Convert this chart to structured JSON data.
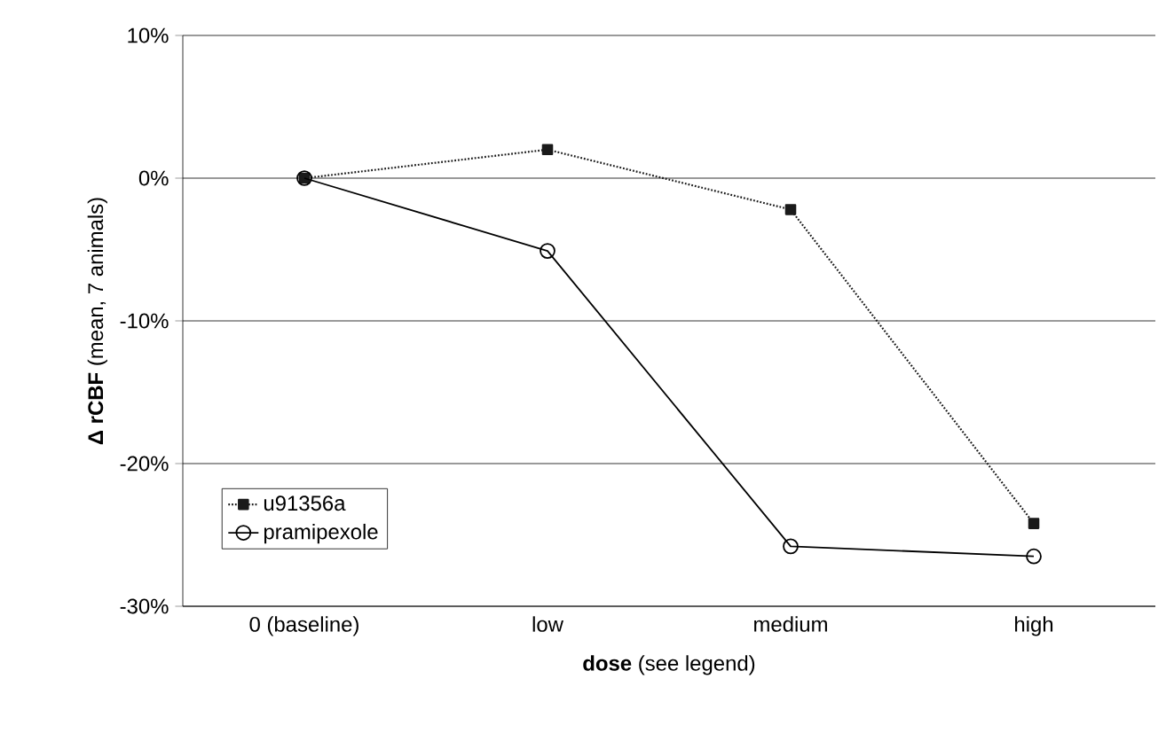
{
  "chart_data": {
    "type": "line",
    "xlabel": "**dose** (see legend)",
    "ylabel": "**Δ rCBF** (mean, 7 animals)",
    "categories": [
      "0 (baseline)",
      "low",
      "medium",
      "high"
    ],
    "series": [
      {
        "name": "u91356a",
        "color": "#1a1a1a",
        "values": [
          0,
          2.0,
          -2.2,
          -24.2
        ],
        "marker": "square",
        "line_style": "dotted"
      },
      {
        "name": "pramipexole",
        "color": "#000000",
        "values": [
          0,
          -5.1,
          -25.8,
          -26.5
        ],
        "marker": "circle",
        "line_style": "solid"
      }
    ],
    "ylim": [
      -30,
      10
    ],
    "yticks": [
      {
        "value": -30,
        "label": "-30%"
      },
      {
        "value": -20,
        "label": "-20%"
      },
      {
        "value": -10,
        "label": "-10%"
      },
      {
        "value": 0,
        "label": "0%"
      },
      {
        "value": 10,
        "label": "10%"
      }
    ],
    "grid": "y",
    "legend": "bottom left"
  }
}
